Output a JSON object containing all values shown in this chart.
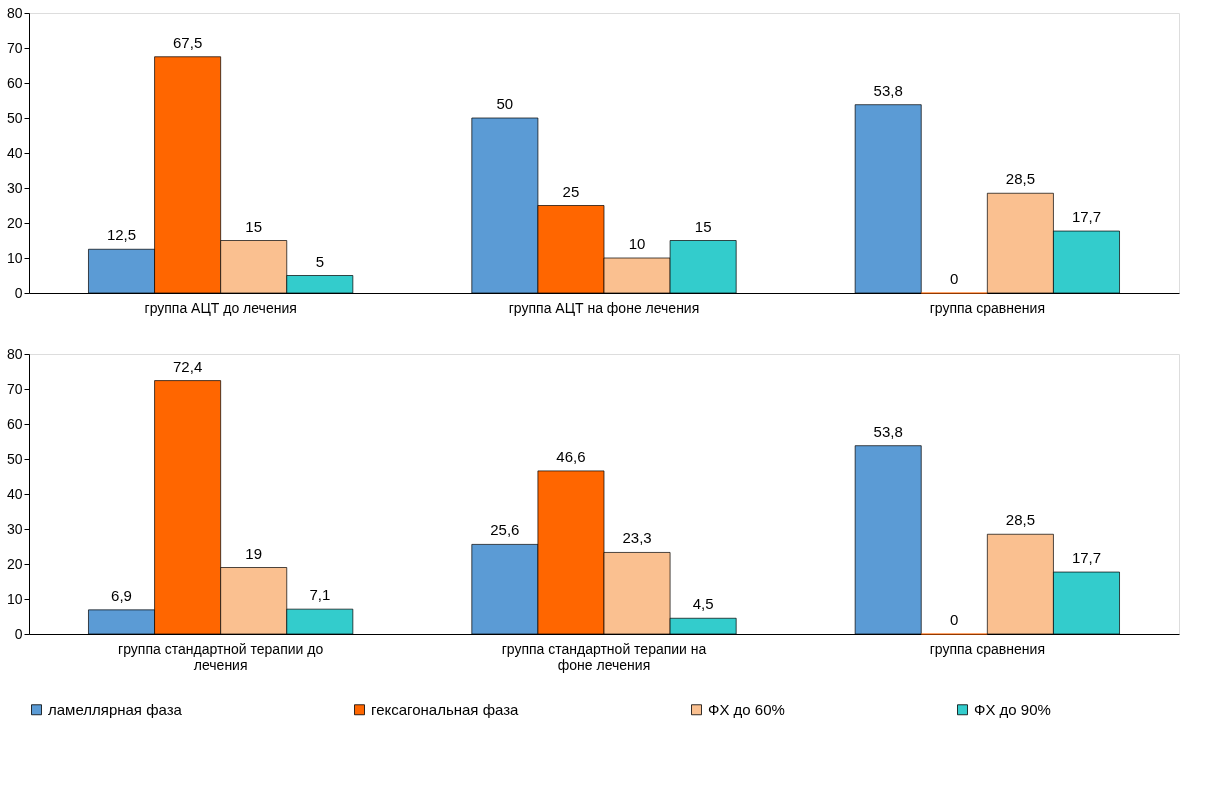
{
  "chart_data": [
    {
      "type": "bar",
      "categories": [
        "группа АЦТ до лечения",
        "группа АЦТ на фоне лечения",
        "группа сравнения"
      ],
      "ylim": [
        0,
        80
      ],
      "yticks": [
        0,
        10,
        20,
        30,
        40,
        50,
        60,
        70,
        80
      ],
      "grid": false,
      "legend": false,
      "series": [
        {
          "color": "#5b9bd5",
          "values": [
            12.5,
            50,
            53.8
          ],
          "value_labels": [
            "12,5",
            "50",
            "53,8"
          ]
        },
        {
          "color": "#ff6600",
          "values": [
            67.5,
            25,
            0
          ],
          "value_labels": [
            "67,5",
            "25",
            "0"
          ]
        },
        {
          "color": "#fac090",
          "values": [
            15,
            10,
            28.5
          ],
          "value_labels": [
            "15",
            "10",
            "28,5"
          ]
        },
        {
          "color": "#33cccc",
          "values": [
            5,
            15,
            17.7
          ],
          "value_labels": [
            "5",
            "15",
            "17,7"
          ]
        }
      ]
    },
    {
      "type": "bar",
      "categories": [
        "группа стандартной терапии до лечения",
        "группа стандартной терапии на фоне лечения",
        "группа сравнения"
      ],
      "ylim": [
        0,
        80
      ],
      "yticks": [
        0,
        10,
        20,
        30,
        40,
        50,
        60,
        70,
        80
      ],
      "grid": false,
      "legend": "bottom",
      "series": [
        {
          "name": "ламеллярная фаза",
          "color": "#5b9bd5",
          "values": [
            6.9,
            25.6,
            53.8
          ],
          "value_labels": [
            "6,9",
            "25,6",
            "53,8"
          ]
        },
        {
          "name": "гексагональная фаза",
          "color": "#ff6600",
          "values": [
            72.4,
            46.6,
            0
          ],
          "value_labels": [
            "72,4",
            "46,6",
            "0"
          ]
        },
        {
          "name": "ФХ до 60%",
          "color": "#fac090",
          "values": [
            19,
            23.3,
            28.5
          ],
          "value_labels": [
            "19",
            "23,3",
            "28,5"
          ]
        },
        {
          "name": "ФХ до 90%",
          "color": "#33cccc",
          "values": [
            7.1,
            4.5,
            17.7
          ],
          "value_labels": [
            "7,1",
            "4,5",
            "17,7"
          ]
        }
      ]
    }
  ]
}
